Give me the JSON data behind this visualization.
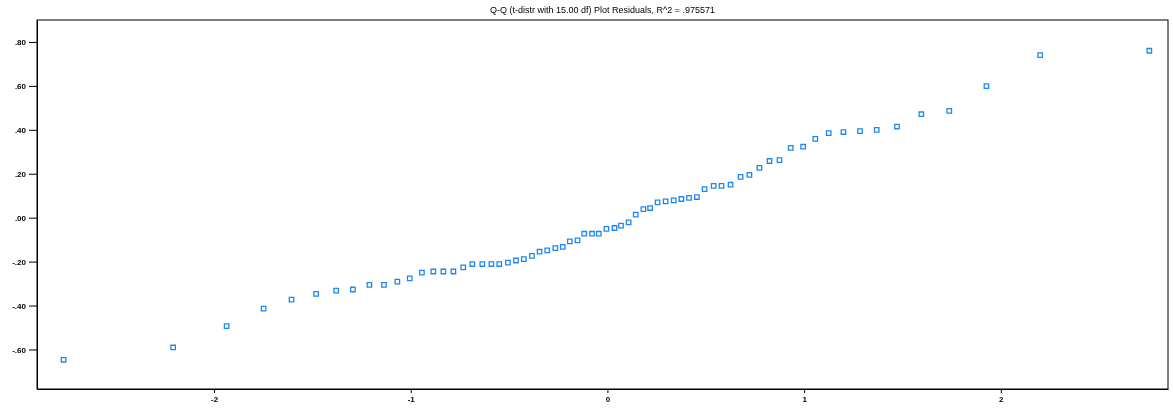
{
  "chart_data": {
    "type": "scatter",
    "title": "Q-Q (t-distr with 15.00 df) Plot Residuals, R^2 = .975571",
    "marker": "square",
    "grid": false,
    "xlim": [
      -2.9,
      2.85
    ],
    "xticks": [
      -2,
      -1,
      0,
      1,
      2
    ],
    "ylim": [
      -0.78,
      0.9
    ],
    "yticks": [
      {
        "value": 0.8,
        "label": ".80"
      },
      {
        "value": 0.6,
        "label": ".60"
      },
      {
        "value": 0.4,
        "label": ".40"
      },
      {
        "value": 0.2,
        "label": ".20"
      },
      {
        "value": 0,
        "label": ".00"
      },
      {
        "value": -0.2,
        "label": "-.20"
      },
      {
        "value": -0.4,
        "label": "-.40"
      },
      {
        "value": -0.6,
        "label": "-.60"
      }
    ],
    "series": [
      {
        "color": "#1e88f0",
        "x": [
          -2.765,
          -2.208,
          -1.936,
          -1.748,
          -1.606,
          -1.481,
          -1.379,
          -1.294,
          -1.21,
          -1.136,
          -1.068,
          -1.005,
          -0.943,
          -0.885,
          -0.834,
          -0.783,
          -0.733,
          -0.687,
          -0.636,
          -0.59,
          -0.55,
          -0.506,
          -0.465,
          -0.425,
          -0.384,
          -0.345,
          -0.306,
          -0.265,
          -0.227,
          -0.191,
          -0.152,
          -0.118,
          -0.078,
          -0.044,
          -0.005,
          0.036,
          0.069,
          0.108,
          0.144,
          0.183,
          0.217,
          0.255,
          0.296,
          0.337,
          0.376,
          0.415,
          0.455,
          0.494,
          0.54,
          0.58,
          0.626,
          0.677,
          0.722,
          0.773,
          0.824,
          0.875,
          0.932,
          0.995,
          1.057,
          1.125,
          1.2,
          1.284,
          1.369,
          1.472,
          1.596,
          1.738,
          1.927,
          2.2,
          2.755
        ],
        "values": [
          -0.647,
          -0.591,
          -0.494,
          -0.414,
          -0.373,
          -0.347,
          -0.332,
          -0.327,
          -0.306,
          -0.306,
          -0.291,
          -0.276,
          -0.25,
          -0.245,
          -0.245,
          -0.245,
          -0.226,
          -0.211,
          -0.211,
          -0.211,
          -0.211,
          -0.205,
          -0.195,
          -0.189,
          -0.174,
          -0.155,
          -0.149,
          -0.139,
          -0.133,
          -0.108,
          -0.103,
          -0.073,
          -0.073,
          -0.073,
          -0.051,
          -0.047,
          -0.036,
          -0.021,
          0.014,
          0.039,
          0.044,
          0.07,
          0.074,
          0.079,
          0.085,
          0.09,
          0.094,
          0.13,
          0.145,
          0.145,
          0.15,
          0.186,
          0.195,
          0.227,
          0.258,
          0.262,
          0.318,
          0.323,
          0.359,
          0.385,
          0.39,
          0.394,
          0.4,
          0.415,
          0.471,
          0.486,
          0.599,
          0.74,
          0.76
        ]
      }
    ]
  }
}
